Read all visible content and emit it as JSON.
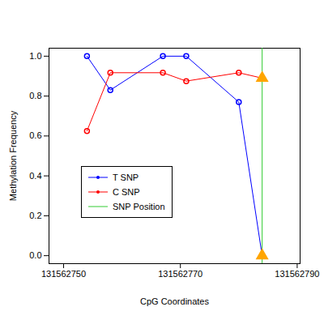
{
  "chart_data": {
    "type": "line",
    "x_label": "CpG Coordinates",
    "y_label": "Methylation Frequency",
    "x": [
      131562754,
      131562758,
      131562767,
      131562771,
      131562780,
      131562784
    ],
    "series": [
      {
        "name": "T SNP",
        "color": "#0000ff",
        "marker": "circle",
        "values": [
          1.0,
          0.83,
          1.0,
          1.0,
          0.77,
          0.0
        ]
      },
      {
        "name": "C SNP",
        "color": "#ff0000",
        "marker": "circle",
        "values": [
          0.625,
          0.917,
          0.917,
          0.875,
          0.917,
          0.89
        ]
      },
      {
        "name": "SNP Position",
        "color": "#33cc33",
        "type": "vline",
        "x": 131562784
      }
    ],
    "xlim": [
      131562747.5,
      131562790.5
    ],
    "xticks": [
      131562750,
      131562770,
      131562790
    ],
    "ylim": [
      -0.04,
      1.04
    ],
    "yticks": [
      {
        "value": 0,
        "label": "0.0"
      },
      {
        "value": 0.2,
        "label": "0.2"
      },
      {
        "value": 0.4,
        "label": "0.4"
      },
      {
        "value": 0.6,
        "label": "0.6"
      },
      {
        "value": 0.8,
        "label": "0.8"
      },
      {
        "value": 1,
        "label": "1.0"
      }
    ],
    "legend": "left",
    "grid": false
  }
}
